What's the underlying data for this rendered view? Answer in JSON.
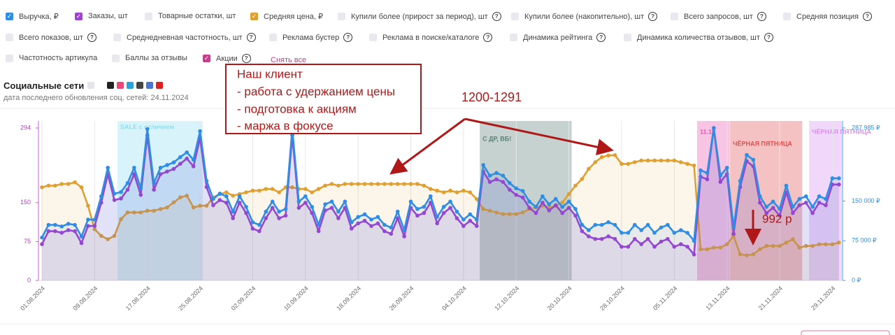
{
  "filters": [
    {
      "label": "Товарные остатки, шт",
      "checked": false,
      "help": false
    },
    {
      "label": "Купили более (прирост за период), шт",
      "checked": false,
      "help": true
    },
    {
      "label": "Купили более (накопительно), шт",
      "checked": false,
      "help": true
    },
    {
      "label": "Всего запросов, шт",
      "checked": false,
      "help": true
    },
    {
      "label": "Средняя позиция",
      "checked": false,
      "help": true
    },
    {
      "label": "Всего показов, шт",
      "checked": false,
      "help": true
    },
    {
      "label": "Среднедневная частотность, шт",
      "checked": false,
      "help": true
    },
    {
      "label": "Реклама бустер",
      "checked": false,
      "help": true
    },
    {
      "label": "Реклама в поиске/каталоге",
      "checked": false,
      "help": true
    },
    {
      "label": "Динамика рейтинга",
      "checked": false,
      "help": true
    },
    {
      "label": "Динамика количества отзывов, шт",
      "checked": false,
      "help": true
    },
    {
      "label": "Частотность артикула",
      "checked": false,
      "help": false
    },
    {
      "label": "Баллы за отзывы",
      "checked": false,
      "help": false
    },
    {
      "label": "Акции",
      "checked": true,
      "help": true,
      "color": "#c2408a"
    }
  ],
  "clear_all": "Снять все",
  "social": {
    "title": "Социальные сети",
    "updated": "дата последнего обновления соц. сетей: 24.11.2024"
  },
  "annotations": {
    "box": [
      "Наш клиент",
      "- работа с удержанием цены",
      "- подготовка к акциям",
      "- маржа в фокусе"
    ],
    "range": "1200-1291",
    "price": "992 р"
  },
  "chart_data": {
    "type": "line",
    "categories": [
      "01.08.2024",
      null,
      null,
      null,
      null,
      null,
      null,
      null,
      "09.08.2024",
      null,
      null,
      null,
      null,
      null,
      null,
      null,
      "17.08.2024",
      null,
      null,
      null,
      null,
      null,
      null,
      null,
      "25.08.2024",
      null,
      null,
      null,
      null,
      null,
      null,
      null,
      "02.09.2024",
      null,
      null,
      null,
      null,
      null,
      null,
      null,
      "10.09.2024",
      null,
      null,
      null,
      null,
      null,
      null,
      null,
      "18.09.2024",
      null,
      null,
      null,
      null,
      null,
      null,
      null,
      "26.09.2024",
      null,
      null,
      null,
      null,
      null,
      null,
      null,
      "04.10.2024",
      null,
      null,
      null,
      null,
      null,
      null,
      null,
      "12.10.2024",
      null,
      null,
      null,
      null,
      null,
      null,
      null,
      "20.10.2024",
      null,
      null,
      null,
      null,
      null,
      null,
      null,
      "28.10.2024",
      null,
      null,
      null,
      null,
      null,
      null,
      null,
      "05.11.2024",
      null,
      null,
      null,
      null,
      null,
      null,
      null,
      "13.11.2024",
      null,
      null,
      null,
      null,
      null,
      null,
      null,
      "21.11.2024",
      null,
      null,
      null,
      null,
      null,
      null,
      null,
      "29.11.2024",
      null
    ],
    "series": [
      {
        "name": "Выручка, ₽",
        "color": "#2f8de4",
        "axis": "y2",
        "values": [
          81000,
          105000,
          105000,
          102000,
          107000,
          105000,
          83000,
          115000,
          115000,
          159000,
          213000,
          164000,
          167000,
          184000,
          213000,
          174000,
          286000,
          184000,
          213000,
          218000,
          223000,
          233000,
          242000,
          228000,
          282000,
          188000,
          154000,
          164000,
          159000,
          130000,
          159000,
          139000,
          110000,
          105000,
          130000,
          149000,
          130000,
          135000,
          286000,
          149000,
          159000,
          139000,
          105000,
          144000,
          149000,
          130000,
          149000,
          110000,
          120000,
          125000,
          115000,
          120000,
          105000,
          100000,
          130000,
          95000,
          149000,
          135000,
          139000,
          159000,
          120000,
          139000,
          149000,
          130000,
          115000,
          125000,
          115000,
          218000,
          198000,
          203000,
          198000,
          184000,
          174000,
          169000,
          149000,
          139000,
          159000,
          144000,
          154000,
          139000,
          149000,
          135000,
          105000,
          95000,
          105000,
          105000,
          110000,
          105000,
          90000,
          90000,
          105000,
          95000,
          105000,
          90000,
          100000,
          105000,
          90000,
          95000,
          90000,
          75000,
          208000,
          203000,
          287985,
          198000,
          213000,
          100000,
          188000,
          237000,
          228000,
          159000,
          139000,
          149000,
          135000,
          179000,
          139000,
          154000,
          159000,
          139000,
          159000,
          154000,
          193000,
          193000
        ]
      },
      {
        "name": "Заказы, шт",
        "color": "#a040d0",
        "values": [
          70,
          95,
          95,
          92,
          97,
          95,
          72,
          105,
          105,
          150,
          205,
          155,
          158,
          175,
          205,
          165,
          280,
          175,
          205,
          210,
          215,
          225,
          235,
          220,
          275,
          180,
          145,
          155,
          150,
          120,
          150,
          130,
          100,
          95,
          120,
          140,
          120,
          125,
          280,
          140,
          150,
          130,
          95,
          135,
          140,
          120,
          140,
          100,
          110,
          115,
          105,
          110,
          95,
          90,
          120,
          85,
          140,
          125,
          130,
          150,
          110,
          130,
          140,
          120,
          105,
          115,
          105,
          210,
          190,
          195,
          190,
          175,
          165,
          160,
          140,
          130,
          150,
          135,
          145,
          130,
          140,
          125,
          95,
          85,
          80,
          80,
          85,
          80,
          65,
          65,
          80,
          70,
          80,
          65,
          75,
          80,
          65,
          70,
          65,
          50,
          200,
          195,
          294,
          190,
          205,
          90,
          180,
          230,
          220,
          150,
          130,
          140,
          125,
          170,
          130,
          145,
          150,
          130,
          150,
          145,
          185,
          185
        ]
      },
      {
        "name": "Средняя цена, ₽",
        "color": "#e0a030",
        "axis": "y3",
        "values": [
          1195,
          1200,
          1200,
          1205,
          1205,
          1210,
          1195,
          1140,
          1070,
          1050,
          1040,
          1050,
          1100,
          1120,
          1120,
          1120,
          1125,
          1125,
          1130,
          1135,
          1150,
          1165,
          1170,
          1135,
          1140,
          1140,
          1165,
          1175,
          1180,
          1170,
          1175,
          1180,
          1185,
          1185,
          1190,
          1190,
          1180,
          1195,
          1195,
          1190,
          1190,
          1180,
          1190,
          1200,
          1205,
          1200,
          1205,
          1205,
          1205,
          1205,
          1205,
          1205,
          1205,
          1205,
          1205,
          1205,
          1205,
          1205,
          1200,
          1190,
          1185,
          1180,
          1185,
          1180,
          1185,
          1180,
          1160,
          1130,
          1125,
          1120,
          1115,
          1115,
          1115,
          1120,
          1130,
          1135,
          1140,
          1135,
          1140,
          1150,
          1175,
          1200,
          1220,
          1250,
          1270,
          1285,
          1290,
          1291,
          1265,
          1265,
          1270,
          1275,
          1275,
          1275,
          1275,
          1275,
          1275,
          1270,
          1265,
          1260,
          1010,
          1010,
          1015,
          1015,
          1025,
          1050,
          995,
          992,
          995,
          1010,
          1020,
          1020,
          1020,
          1030,
          1040,
          1015,
          1020,
          1020,
          1025,
          1025,
          1025,
          1030
        ]
      }
    ],
    "ylim": [
      0,
      294
    ],
    "yticks": [
      0,
      75,
      150,
      294
    ],
    "y2lim": [
      0,
      287985
    ],
    "y2ticks": [
      {
        "value": 0,
        "label": "0 ₽"
      },
      {
        "value": 75000,
        "label": "75 000 ₽"
      },
      {
        "value": 150000,
        "label": "150 000 ₽"
      },
      {
        "value": 287985,
        "label": "287 985 ₽"
      }
    ],
    "y3lim": [
      917,
      1372
    ],
    "promotions": [
      {
        "label": "SALE с отличием",
        "from": 12,
        "to": 24,
        "color": "#8fe0f0"
      },
      {
        "label": "С ДР, ВБ!",
        "from": 67,
        "to": 80,
        "color": "#5a7f76"
      },
      {
        "label": "11.11",
        "from": 100,
        "to": 104,
        "color": "#e858b0"
      },
      {
        "label": "ЧЁРНАЯ ПЯТНИЦА",
        "from": 105,
        "to": 115,
        "color": "#e05050"
      },
      {
        "label": "ЧЁРНАЯ ПЯТНИЦА",
        "from": 117,
        "to": 121,
        "color": "#d890f0"
      }
    ],
    "grid": true
  }
}
